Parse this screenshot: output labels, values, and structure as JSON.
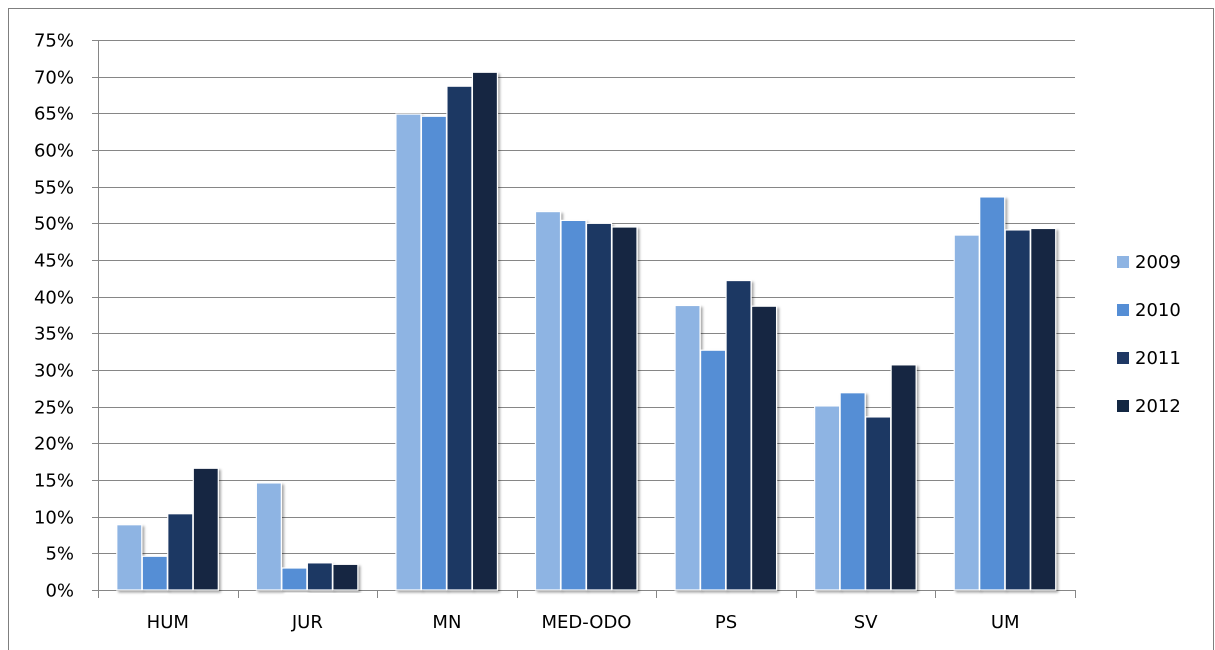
{
  "chart_data": {
    "type": "bar",
    "categories": [
      "HUM",
      "JUR",
      "MN",
      "MED-ODO",
      "PS",
      "SV",
      "UM"
    ],
    "series": [
      {
        "name": "2009",
        "color": "#8EB4E3",
        "values": [
          8.9,
          14.6,
          64.9,
          51.6,
          38.8,
          25.1,
          48.4
        ]
      },
      {
        "name": "2010",
        "color": "#558ED5",
        "values": [
          4.6,
          3.0,
          64.6,
          50.4,
          32.7,
          26.9,
          53.6
        ]
      },
      {
        "name": "2011",
        "color": "#1F3864",
        "values": [
          10.4,
          3.7,
          68.7,
          50.0,
          42.2,
          23.6,
          49.1
        ]
      },
      {
        "name": "2012",
        "color": "#132742",
        "values": [
          16.6,
          3.5,
          70.6,
          49.5,
          38.7,
          30.7,
          49.3
        ]
      }
    ],
    "y_ticks": [
      "0%",
      "5%",
      "10%",
      "15%",
      "20%",
      "25%",
      "30%",
      "35%",
      "40%",
      "45%",
      "50%",
      "55%",
      "60%",
      "65%",
      "70%",
      "75%"
    ],
    "ylim": [
      0,
      75
    ],
    "y_step": 5,
    "title": "",
    "xlabel": "",
    "ylabel": "",
    "grid": true,
    "legend_position": "right"
  }
}
